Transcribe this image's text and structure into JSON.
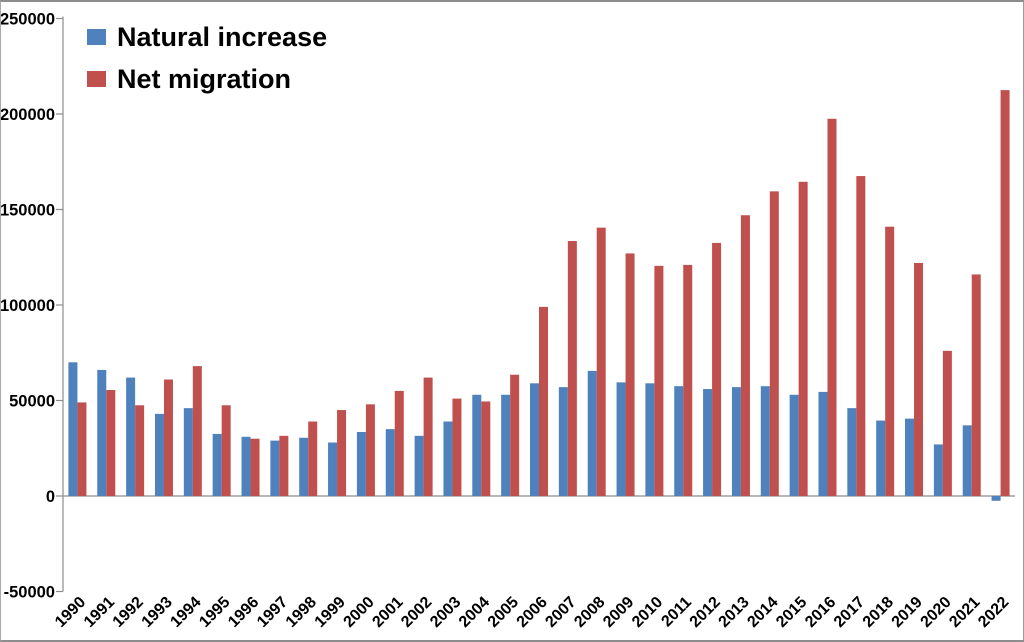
{
  "chart_data": {
    "type": "bar",
    "title": "",
    "xlabel": "",
    "ylabel": "",
    "categories": [
      "1990",
      "1991",
      "1992",
      "1993",
      "1994",
      "1995",
      "1996",
      "1997",
      "1998",
      "1999",
      "2000",
      "2001",
      "2002",
      "2003",
      "2004",
      "2005",
      "2006",
      "2007",
      "2008",
      "2009",
      "2010",
      "2011",
      "2012",
      "2013",
      "2014",
      "2015",
      "2016",
      "2017",
      "2018",
      "2019",
      "2020",
      "2021",
      "2022"
    ],
    "series": [
      {
        "name": "Natural increase",
        "color": "#4F81BD",
        "values": [
          70000,
          66000,
          62000,
          43000,
          46000,
          32500,
          31000,
          29000,
          30500,
          28000,
          33500,
          35000,
          31500,
          39000,
          53000,
          53000,
          59000,
          57000,
          65500,
          59500,
          59000,
          57500,
          56000,
          57000,
          57500,
          53000,
          54500,
          46000,
          39500,
          40500,
          27000,
          37000,
          -2500
        ]
      },
      {
        "name": "Net migration",
        "color": "#C0504D",
        "values": [
          49000,
          55500,
          47500,
          61000,
          68000,
          47500,
          30000,
          31500,
          39000,
          45000,
          48000,
          55000,
          62000,
          51000,
          49500,
          63500,
          99000,
          133500,
          140500,
          127000,
          120500,
          121000,
          132500,
          147000,
          159500,
          164500,
          197500,
          167500,
          141000,
          122000,
          76000,
          116000,
          212500
        ]
      }
    ],
    "ylim": [
      -50000,
      250000
    ],
    "y_tick_step": 50000,
    "y_tick_values": [
      250000,
      200000,
      150000,
      100000,
      50000,
      0,
      -50000
    ],
    "grid": false,
    "legend_position": "top-left",
    "axis_color": "#8C8C8C",
    "text_color": "#000000"
  }
}
